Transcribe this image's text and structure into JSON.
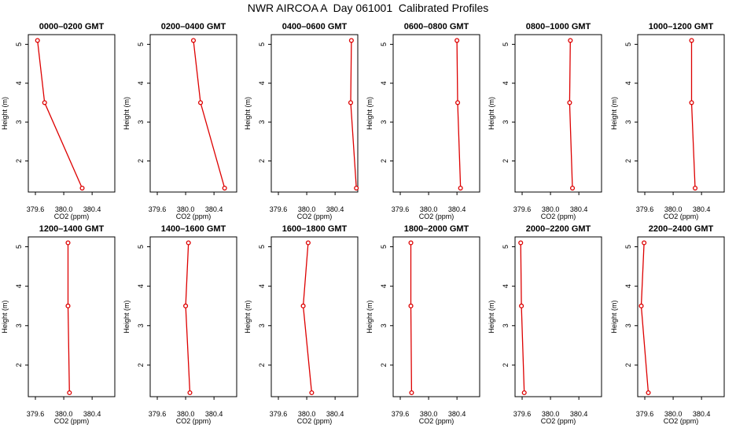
{
  "title": "NWR AIRCOA A  Day 061001  Calibrated Profiles",
  "colors": {
    "series": "#dd0000",
    "frame": "#000000"
  },
  "chart_data": {
    "type": "line",
    "layout": "2x6 grid",
    "xlabel": "CO2 (ppm)",
    "ylabel": "Height (m)",
    "xlim": [
      379.5,
      380.72
    ],
    "ylim": [
      1.2,
      5.25
    ],
    "x_ticks": [
      "379.6",
      "380.0",
      "380.4"
    ],
    "x_tick_values": [
      379.6,
      380.0,
      380.4
    ],
    "y_ticks": [
      "2",
      "3",
      "4",
      "5"
    ],
    "y_tick_values": [
      2,
      3,
      4,
      5
    ],
    "heights": [
      5.1,
      3.5,
      1.3
    ],
    "panels": [
      {
        "title": "0000–0200 GMT",
        "co2": [
          379.63,
          379.73,
          380.26
        ]
      },
      {
        "title": "0200–0400 GMT",
        "co2": [
          380.11,
          380.21,
          380.55
        ]
      },
      {
        "title": "0400–0600 GMT",
        "co2": [
          380.63,
          380.62,
          380.7
        ]
      },
      {
        "title": "0600–0800 GMT",
        "co2": [
          380.4,
          380.41,
          380.45
        ]
      },
      {
        "title": "0800–1000 GMT",
        "co2": [
          380.28,
          380.27,
          380.31
        ]
      },
      {
        "title": "1000–1200 GMT",
        "co2": [
          380.26,
          380.26,
          380.31
        ]
      },
      {
        "title": "1200–1400 GMT",
        "co2": [
          380.06,
          380.06,
          380.08
        ]
      },
      {
        "title": "1400–1600 GMT",
        "co2": [
          380.04,
          380.0,
          380.06
        ]
      },
      {
        "title": "1600–1800 GMT",
        "co2": [
          380.02,
          379.95,
          380.07
        ]
      },
      {
        "title": "1800–2000 GMT",
        "co2": [
          379.75,
          379.75,
          379.76
        ]
      },
      {
        "title": "2000–2200 GMT",
        "co2": [
          379.58,
          379.59,
          379.63
        ]
      },
      {
        "title": "2200–2400 GMT",
        "co2": [
          379.59,
          379.55,
          379.65
        ]
      }
    ]
  }
}
